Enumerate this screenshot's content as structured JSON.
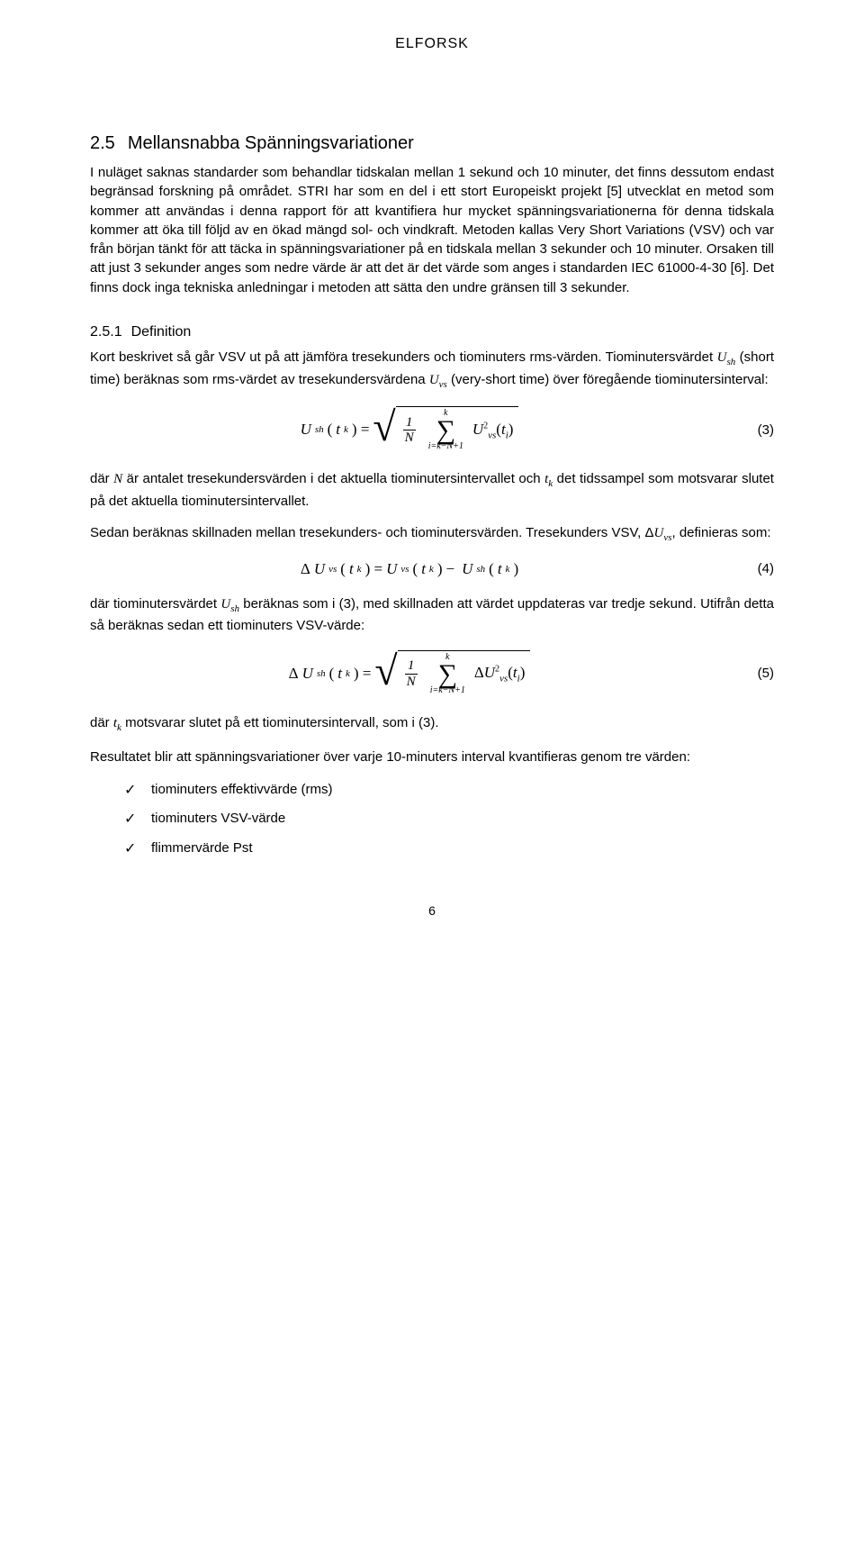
{
  "header": "ELFORSK",
  "section": {
    "num": "2.5",
    "title": "Mellansnabba Spänningsvariationer",
    "para": "I nuläget saknas standarder som behandlar tidskalan mellan 1 sekund och 10 minuter, det finns dessutom endast begränsad forskning på området. STRI har som en del i ett stort Europeiskt projekt [5] utvecklat en metod som kommer att användas i denna rapport för att kvantifiera hur mycket spänningsvariationerna för denna tidskala kommer att öka till följd av en ökad mängd sol- och vindkraft. Metoden kallas Very Short Variations (VSV) och var från början tänkt för att täcka in spänningsvariationer på en tidskala mellan 3 sekunder och 10 minuter. Orsaken till att just 3 sekunder anges som nedre värde är att det är det värde som anges i standarden IEC 61000-4-30 [6]. Det finns dock inga tekniska anledningar i metoden att sätta den undre gränsen till 3 sekunder."
  },
  "sub": {
    "num": "2.5.1",
    "title": "Definition",
    "p1_a": "Kort beskrivet så går VSV ut på att jämföra tresekunders och tiominuters rms-värden. Tiominutersvärdet ",
    "p1_ush": "U",
    "p1_ush_sub": "sh",
    "p1_b": " (short time) beräknas som rms-värdet av tresekundersvärdena ",
    "p1_uvs": "U",
    "p1_uvs_sub": "vs",
    "p1_c": " (very-short time) över föregående tiominutersinterval:",
    "p2_a": "där ",
    "p2_N": "N",
    "p2_b": " är antalet tresekundersvärden i det aktuella tiominutersintervallet och ",
    "p2_tk": "t",
    "p2_tk_sub": "k",
    "p2_c": " det tidssampel som motsvarar slutet på det aktuella tiominutersintervallet.",
    "p3": "Sedan beräknas skillnaden mellan tresekunders- och tiominutersvärden. Tresekunders VSV, ΔUvs, definieras som:",
    "p3_a": "Sedan beräknas skillnaden mellan tresekunders- och tiominutersvärden. Tresekunders VSV, Δ",
    "p3_U": "U",
    "p3_U_sub": "vs",
    "p3_b": ", definieras som:",
    "p4_a": "där tiominutersvärdet ",
    "p4_ush": "U",
    "p4_ush_sub": "sh",
    "p4_b": " beräknas som i (3), med skillnaden att värdet uppdateras var tredje sekund. Utifrån detta så beräknas sedan ett tiominuters VSV-värde:",
    "p5_a": "där ",
    "p5_tk": "t",
    "p5_tk_sub": "k",
    "p5_b": " motsvarar slutet på ett tiominutersintervall, som i (3).",
    "p6": "Resultatet blir att spänningsvariationer över varje 10-minuters interval kvantifieras genom tre värden:"
  },
  "eq3": {
    "lhs": "U",
    "lhs_sub": "sh",
    "arg": "t",
    "arg_sub": "k",
    "frac_num": "1",
    "frac_den": "N",
    "sum_top": "k",
    "sum_bottom": "i=k−N+1",
    "term": "U",
    "term_sub": "vs",
    "term_sup": "2",
    "term_arg": "t",
    "term_arg_sub": "i",
    "num": "(3)"
  },
  "eq4": {
    "lhs_d": "Δ",
    "lhs": "U",
    "lhs_sub": "vs",
    "arg": "t",
    "arg_sub": "k",
    "r1": "U",
    "r1_sub": "vs",
    "r1_arg": "t",
    "r1_arg_sub": "k",
    "minus": "−",
    "r2": "U",
    "r2_sub": "sh",
    "r2_arg": "t",
    "r2_arg_sub": "k",
    "num": "(4)"
  },
  "eq5": {
    "lhs_d": "Δ",
    "lhs": "U",
    "lhs_sub": "sh",
    "arg": "t",
    "arg_sub": "k",
    "frac_num": "1",
    "frac_den": "N",
    "sum_top": "k",
    "sum_bottom": "i=k−N+1",
    "term_d": "Δ",
    "term": "U",
    "term_sub": "vs",
    "term_sup": "2",
    "term_arg": "t",
    "term_arg_sub": "i",
    "num": "(5)"
  },
  "list": {
    "i1": "tiominuters effektivvärde (rms)",
    "i2": "tiominuters VSV-värde",
    "i3": "flimmervärde Pst"
  },
  "page_num": "6"
}
